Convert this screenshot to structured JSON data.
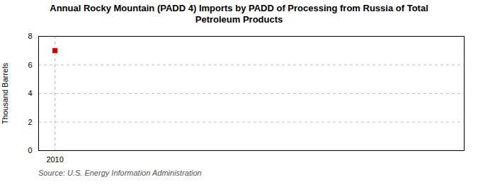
{
  "chart_data": {
    "type": "scatter",
    "title": "Annual Rocky Mountain (PADD 4) Imports by PADD of Processing from Russia of Total\nPetroleum Products",
    "ylabel": "Thousand Barrels",
    "annotations": [
      "Source: U.S. Energy Information Administration"
    ],
    "x": [
      2010
    ],
    "values": [
      7
    ],
    "color": "#cc0000",
    "marker": "square",
    "vline": {
      "x": 2010,
      "color": "#bbbbbb",
      "line_style": "dashed"
    },
    "xlim": [
      2009.4,
      2025
    ],
    "xticks": [
      2010
    ],
    "ylim": [
      0,
      8
    ],
    "yticks": [
      0,
      2,
      4,
      6,
      8
    ],
    "grid": true
  }
}
